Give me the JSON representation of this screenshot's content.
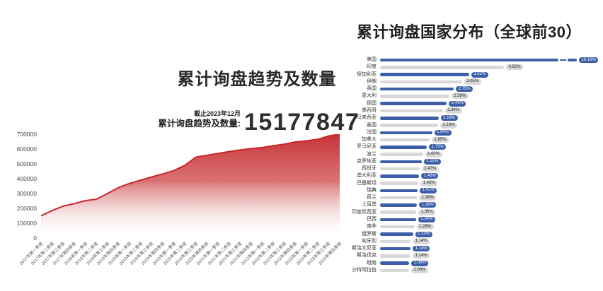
{
  "chart_data": [
    {
      "type": "area",
      "title": "累计询盘趋势及数量",
      "asof_note": "截止2023年12月",
      "stat_label": "累计询盘趋势及数量:",
      "stat_value": "15177847",
      "xlabel": "",
      "ylabel": "",
      "ylim": [
        0,
        700000
      ],
      "yticks": [
        0,
        100000,
        200000,
        300000,
        400000,
        500000,
        600000,
        700000
      ],
      "grid": false,
      "line_color": "#c9262c",
      "fill_gradient_top": "#c42a30",
      "fill_gradient_bottom": "#ffffff",
      "x": [
        "2017年第一季度",
        "2017年第二季度",
        "2017年第三季度",
        "2017年第四季度",
        "2018年第一季度",
        "2018年第二季度",
        "2018年第三季度",
        "2018年第四季度",
        "2019年第一季度",
        "2019年第二季度",
        "2019年第三季度",
        "2019年第四季度",
        "2020年第一季度",
        "2020年第二季度",
        "2020年第三季度",
        "2020年第四季度",
        "2021年第一季度",
        "2021年第二季度",
        "2021年第三季度",
        "2021年第四季度",
        "2022年第一季度",
        "2022年第二季度",
        "2022年第三季度",
        "2022年第四季度",
        "2023年第一季度",
        "2023年第二季度",
        "2023年第三季度",
        "2023年第四季度"
      ],
      "values": [
        150000,
        185000,
        215000,
        232000,
        252000,
        262000,
        300000,
        340000,
        368000,
        390000,
        412000,
        432000,
        455000,
        490000,
        545000,
        558000,
        570000,
        583000,
        594000,
        603000,
        610000,
        622000,
        633000,
        648000,
        655000,
        665000,
        688000,
        700000
      ]
    },
    {
      "type": "bar",
      "orientation": "horizontal",
      "title": "累计询盘国家分布（全球前30）",
      "unit": "%",
      "legend": null,
      "grid": false,
      "colors": {
        "blue": "#3d5fa9",
        "gray": "#d8d8d8",
        "pill_gray_text": "#222222"
      },
      "rows": [
        {
          "label": "美国",
          "value": 10.19,
          "display": "10.19%",
          "color": "blue",
          "broken": true
        },
        {
          "label": "印度",
          "value": 4.62,
          "display": "4.62%",
          "color": "gray",
          "broken": false
        },
        {
          "label": "保加利亚",
          "value": 3.32,
          "display": "3.32%",
          "color": "blue",
          "broken": false
        },
        {
          "label": "伊朗",
          "value": 3.05,
          "display": "3.05%",
          "color": "gray",
          "broken": false
        },
        {
          "label": "英国",
          "value": 2.75,
          "display": "2.75%",
          "color": "blue",
          "broken": false
        },
        {
          "label": "意大利",
          "value": 2.58,
          "display": "2.58%",
          "color": "gray",
          "broken": false
        },
        {
          "label": "德国",
          "value": 2.49,
          "display": "2.49%",
          "color": "blue",
          "broken": false
        },
        {
          "label": "墨西哥",
          "value": 2.34,
          "display": "2.34%",
          "color": "gray",
          "broken": false
        },
        {
          "label": "马来西亚",
          "value": 2.18,
          "display": "2.18%",
          "color": "blue",
          "broken": false
        },
        {
          "label": "泰国",
          "value": 2.16,
          "display": "2.16%",
          "color": "gray",
          "broken": false
        },
        {
          "label": "法国",
          "value": 1.94,
          "display": "1.94%",
          "color": "blue",
          "broken": false
        },
        {
          "label": "加拿大",
          "value": 1.85,
          "display": "1.85%",
          "color": "gray",
          "broken": false
        },
        {
          "label": "罗马尼亚",
          "value": 1.75,
          "display": "1.75%",
          "color": "blue",
          "broken": false
        },
        {
          "label": "波兰",
          "value": 1.6,
          "display": "1.60%",
          "color": "gray",
          "broken": false
        },
        {
          "label": "克罗地亚",
          "value": 1.55,
          "display": "1.55%",
          "color": "blue",
          "broken": false
        },
        {
          "label": "西班牙",
          "value": 1.47,
          "display": "1.47%",
          "color": "gray",
          "broken": false
        },
        {
          "label": "澳大利亚",
          "value": 1.46,
          "display": "1.46%",
          "color": "blue",
          "broken": false
        },
        {
          "label": "巴基斯坦",
          "value": 1.43,
          "display": "1.43%",
          "color": "gray",
          "broken": false
        },
        {
          "label": "瑞典",
          "value": 1.41,
          "display": "1.41%",
          "color": "blue",
          "broken": false
        },
        {
          "label": "荷兰",
          "value": 1.38,
          "display": "1.38%",
          "color": "gray",
          "broken": false
        },
        {
          "label": "土耳其",
          "value": 1.38,
          "display": "1.38%",
          "color": "blue",
          "broken": false
        },
        {
          "label": "印度尼西亚",
          "value": 1.35,
          "display": "1.35%",
          "color": "gray",
          "broken": false
        },
        {
          "label": "巴西",
          "value": 1.34,
          "display": "1.34%",
          "color": "blue",
          "broken": false
        },
        {
          "label": "南非",
          "value": 1.28,
          "display": "1.28%",
          "color": "gray",
          "broken": false
        },
        {
          "label": "俄罗斯",
          "value": 1.23,
          "display": "1.23%",
          "color": "blue",
          "broken": false
        },
        {
          "label": "匈牙利",
          "value": 1.14,
          "display": "1.14%",
          "color": "gray",
          "broken": false
        },
        {
          "label": "斯洛文尼亚",
          "value": 1.14,
          "display": "1.14%",
          "color": "blue",
          "broken": false
        },
        {
          "label": "斯洛伐克",
          "value": 1.14,
          "display": "1.14%",
          "color": "gray",
          "broken": false
        },
        {
          "label": "越南",
          "value": 1.09,
          "display": "1.09%",
          "color": "blue",
          "broken": false
        },
        {
          "label": "沙特阿拉伯",
          "value": 1.08,
          "display": "1.08%",
          "color": "gray",
          "broken": false
        }
      ]
    }
  ]
}
